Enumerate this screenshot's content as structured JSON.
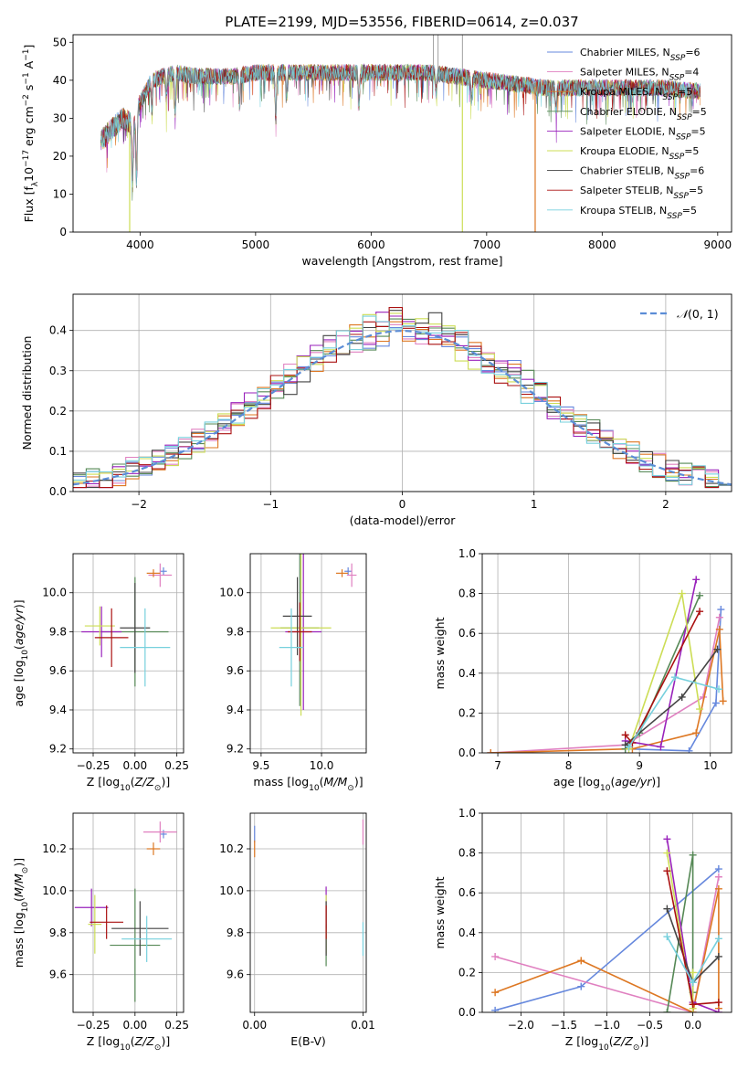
{
  "figure_title": "PLATE=2199, MJD=53556, FIBERID=0614, z=0.037",
  "colors": {
    "Chabrier MILES": "#6688dd",
    "Salpeter MILES": "#e080c0",
    "Kroupa MILES": "#dd7722",
    "Chabrier ELODIE": "#558855",
    "Salpeter ELODIE": "#9922bb",
    "Kroupa ELODIE": "#ccdd55",
    "Chabrier STELIB": "#444444",
    "Salpeter STELIB": "#aa1111",
    "Kroupa STELIB": "#77d0dd"
  },
  "chart_data": [
    {
      "id": "spectrum",
      "type": "line",
      "title": "PLATE=2199, MJD=53556, FIBERID=0614, z=0.037",
      "xlabel": "wavelength [Angstrom, rest frame]",
      "ylabel": "Flux [f_λ 10^-17 erg cm^-2 s^-1 A^-1]",
      "xlim": [
        3420,
        9120
      ],
      "ylim": [
        0,
        52
      ],
      "xticks": [
        4000,
        5000,
        6000,
        7000,
        8000,
        9000
      ],
      "yticks": [
        0,
        10,
        20,
        30,
        40,
        50
      ],
      "grid": false,
      "legend_position": "top-right",
      "legend": [
        {
          "name": "Chabrier MILES",
          "nssp": "6"
        },
        {
          "name": "Salpeter MILES",
          "nssp": "4"
        },
        {
          "name": "Kroupa MILES",
          "nssp": "5"
        },
        {
          "name": "Chabrier ELODIE",
          "nssp": "5"
        },
        {
          "name": "Salpeter ELODIE",
          "nssp": "5"
        },
        {
          "name": "Kroupa ELODIE",
          "nssp": "5"
        },
        {
          "name": "Chabrier STELIB",
          "nssp": "6"
        },
        {
          "name": "Salpeter STELIB",
          "nssp": "5"
        },
        {
          "name": "Kroupa STELIB",
          "nssp": "5"
        }
      ],
      "continuum": [
        [
          3660,
          24
        ],
        [
          3750,
          27
        ],
        [
          3850,
          30
        ],
        [
          3950,
          28
        ],
        [
          4000,
          34
        ],
        [
          4100,
          40
        ],
        [
          4300,
          42
        ],
        [
          4500,
          41
        ],
        [
          4800,
          41
        ],
        [
          5000,
          42
        ],
        [
          5500,
          42
        ],
        [
          6000,
          42
        ],
        [
          6500,
          42
        ],
        [
          7000,
          40
        ],
        [
          7500,
          38
        ],
        [
          8000,
          38
        ],
        [
          8500,
          38
        ],
        [
          8850,
          37
        ]
      ],
      "absorption_lines": [
        [
          3934,
          16
        ],
        [
          3969,
          16
        ],
        [
          4102,
          8
        ],
        [
          4227,
          6
        ],
        [
          4304,
          10
        ],
        [
          4861,
          8
        ],
        [
          5175,
          12
        ],
        [
          5270,
          6
        ],
        [
          5895,
          8
        ],
        [
          6563,
          5
        ],
        [
          6870,
          6
        ],
        [
          7600,
          6
        ]
      ],
      "spikes": [
        6540,
        6580,
        6790
      ],
      "dropouts": [
        {
          "model": "Kroupa ELODIE",
          "wavelength": 3910
        },
        {
          "model": "Kroupa ELODIE",
          "wavelength": 6790
        },
        {
          "model": "Kroupa MILES",
          "wavelength": 7420
        }
      ]
    },
    {
      "id": "residuals",
      "type": "line",
      "xlabel": "(data-model)/error",
      "ylabel": "Normed distribution",
      "xlim": [
        -2.5,
        2.5
      ],
      "ylim": [
        0,
        0.49
      ],
      "xticks": [
        -2,
        -1,
        0,
        1,
        2
      ],
      "yticks": [
        0.0,
        0.1,
        0.2,
        0.3,
        0.4
      ],
      "grid": true,
      "legend_position": "top-right",
      "reference_curve": "N(0,1)",
      "bins": 50
    },
    {
      "id": "age_vs_Z",
      "type": "scatter",
      "xlabel": "Z [log10(Z/Z⊙)]",
      "ylabel": "age [log10(age/yr)]",
      "xlim": [
        -0.37,
        0.29
      ],
      "ylim": [
        9.18,
        10.2
      ],
      "xticks": [
        -0.25,
        0.0,
        0.25
      ],
      "yticks": [
        9.2,
        9.4,
        9.6,
        9.8,
        10.0
      ],
      "grid": true,
      "points": [
        {
          "model": "Chabrier MILES",
          "x": 0.17,
          "y": 10.11,
          "xerr": 0.02,
          "yerr": 0.02
        },
        {
          "model": "Salpeter MILES",
          "x": 0.15,
          "y": 10.09,
          "xerr": 0.07,
          "yerr": 0.06
        },
        {
          "model": "Kroupa MILES",
          "x": 0.11,
          "y": 10.1,
          "xerr": 0.04,
          "yerr": 0.02
        },
        {
          "model": "Chabrier ELODIE",
          "x": 0.0,
          "y": 9.8,
          "xerr": 0.2,
          "yerr": 0.28
        },
        {
          "model": "Salpeter ELODIE",
          "x": -0.2,
          "y": 9.8,
          "xerr": 0.12,
          "yerr": 0.13
        },
        {
          "model": "Kroupa ELODIE",
          "x": -0.21,
          "y": 9.83,
          "xerr": 0.09,
          "yerr": 0.1
        },
        {
          "model": "Chabrier STELIB",
          "x": 0.0,
          "y": 9.82,
          "xerr": 0.09,
          "yerr": 0.23
        },
        {
          "model": "Salpeter STELIB",
          "x": -0.14,
          "y": 9.77,
          "xerr": 0.1,
          "yerr": 0.15
        },
        {
          "model": "Kroupa STELIB",
          "x": 0.06,
          "y": 9.72,
          "xerr": 0.15,
          "yerr": 0.2
        }
      ]
    },
    {
      "id": "age_vs_mass",
      "type": "scatter",
      "xlabel": "mass [log10(M/M⊙)]",
      "ylabel": "",
      "xlim": [
        9.41,
        10.37
      ],
      "ylim": [
        9.18,
        10.2
      ],
      "xticks": [
        9.5,
        10.0
      ],
      "yticks": [
        9.2,
        9.4,
        9.6,
        9.8,
        10.0
      ],
      "grid": true,
      "points": [
        {
          "model": "Chabrier MILES",
          "x": 10.22,
          "y": 10.11,
          "xerr": 0.03,
          "yerr": 0.02
        },
        {
          "model": "Salpeter MILES",
          "x": 10.25,
          "y": 10.09,
          "xerr": 0.04,
          "yerr": 0.06
        },
        {
          "model": "Kroupa MILES",
          "x": 10.17,
          "y": 10.1,
          "xerr": 0.05,
          "yerr": 0.02
        },
        {
          "model": "Chabrier ELODIE",
          "x": 9.82,
          "y": 9.82,
          "xerr": 0.16,
          "yerr": 0.4
        },
        {
          "model": "Salpeter ELODIE",
          "x": 9.85,
          "y": 9.8,
          "xerr": 0.15,
          "yerr": 0.4
        },
        {
          "model": "Kroupa ELODIE",
          "x": 9.83,
          "y": 9.82,
          "xerr": 0.25,
          "yerr": 0.45
        },
        {
          "model": "Chabrier STELIB",
          "x": 9.8,
          "y": 9.88,
          "xerr": 0.12,
          "yerr": 0.2
        },
        {
          "model": "Salpeter STELIB",
          "x": 9.82,
          "y": 9.8,
          "xerr": 0.1,
          "yerr": 0.15
        },
        {
          "model": "Kroupa STELIB",
          "x": 9.75,
          "y": 9.72,
          "xerr": 0.1,
          "yerr": 0.2
        }
      ]
    },
    {
      "id": "mass_weight_vs_age",
      "type": "line",
      "xlabel": "age [log10(age/yr)]",
      "ylabel": "mass weight",
      "xlim": [
        6.78,
        10.3
      ],
      "ylim": [
        0,
        1.0
      ],
      "xticks": [
        7,
        8,
        9,
        10
      ],
      "yticks": [
        0.0,
        0.2,
        0.4,
        0.6,
        0.8,
        1.0
      ],
      "grid": true,
      "series": [
        {
          "model": "Chabrier MILES",
          "x": [
            8.8,
            9.7,
            10.08,
            10.15
          ],
          "y": [
            0.02,
            0.01,
            0.25,
            0.72
          ]
        },
        {
          "model": "Salpeter MILES",
          "x": [
            6.9,
            8.8,
            9.9,
            10.13
          ],
          "y": [
            0.0,
            0.04,
            0.28,
            0.68
          ]
        },
        {
          "model": "Kroupa MILES",
          "x": [
            6.9,
            8.9,
            9.8,
            10.13,
            10.18
          ],
          "y": [
            0.0,
            0.02,
            0.1,
            0.62,
            0.26
          ]
        },
        {
          "model": "Chabrier ELODIE",
          "x": [
            8.8,
            9.0,
            9.85
          ],
          "y": [
            0.02,
            0.1,
            0.79
          ]
        },
        {
          "model": "Salpeter ELODIE",
          "x": [
            8.8,
            9.3,
            9.8
          ],
          "y": [
            0.06,
            0.03,
            0.87
          ]
        },
        {
          "model": "Kroupa ELODIE",
          "x": [
            8.85,
            9.6,
            9.85
          ],
          "y": [
            0.02,
            0.8,
            0.22
          ]
        },
        {
          "model": "Chabrier STELIB",
          "x": [
            8.8,
            9.6,
            10.1
          ],
          "y": [
            0.04,
            0.28,
            0.52
          ]
        },
        {
          "model": "Salpeter STELIB",
          "x": [
            8.8,
            8.9,
            9.85
          ],
          "y": [
            0.09,
            0.05,
            0.71
          ]
        },
        {
          "model": "Kroupa STELIB",
          "x": [
            8.85,
            9.5,
            10.12
          ],
          "y": [
            0.03,
            0.38,
            0.32
          ]
        }
      ]
    },
    {
      "id": "mass_vs_Z",
      "type": "scatter",
      "xlabel": "Z [log10(Z/Z⊙)]",
      "ylabel": "mass [log10(M/M⊙)]",
      "xlim": [
        -0.37,
        0.29
      ],
      "ylim": [
        9.42,
        10.37
      ],
      "xticks": [
        -0.25,
        0.0,
        0.25
      ],
      "yticks": [
        9.6,
        9.8,
        10.0,
        10.2
      ],
      "grid": true,
      "points": [
        {
          "model": "Chabrier MILES",
          "x": 0.17,
          "y": 10.27,
          "xerr": 0.02,
          "yerr": 0.02
        },
        {
          "model": "Salpeter MILES",
          "x": 0.15,
          "y": 10.28,
          "xerr": 0.1,
          "yerr": 0.05
        },
        {
          "model": "Kroupa MILES",
          "x": 0.11,
          "y": 10.2,
          "xerr": 0.04,
          "yerr": 0.03
        },
        {
          "model": "Chabrier ELODIE",
          "x": 0.0,
          "y": 9.74,
          "xerr": 0.15,
          "yerr": 0.27
        },
        {
          "model": "Salpeter ELODIE",
          "x": -0.26,
          "y": 9.92,
          "xerr": 0.1,
          "yerr": 0.09
        },
        {
          "model": "Kroupa ELODIE",
          "x": -0.24,
          "y": 9.84,
          "xerr": 0.04,
          "yerr": 0.14
        },
        {
          "model": "Chabrier STELIB",
          "x": 0.03,
          "y": 9.82,
          "xerr": 0.17,
          "yerr": 0.13
        },
        {
          "model": "Salpeter STELIB",
          "x": -0.17,
          "y": 9.85,
          "xerr": 0.1,
          "yerr": 0.08
        },
        {
          "model": "Kroupa STELIB",
          "x": 0.07,
          "y": 9.77,
          "xerr": 0.15,
          "yerr": 0.11
        }
      ]
    },
    {
      "id": "mass_vs_ebv",
      "type": "scatter",
      "xlabel": "E(B-V)",
      "ylabel": "",
      "xlim": [
        -0.0004,
        0.0103
      ],
      "ylim": [
        9.42,
        10.37
      ],
      "xticks": [
        0.0,
        0.01
      ],
      "yticks": [
        9.6,
        9.8,
        10.0,
        10.2
      ],
      "grid": true,
      "points": [
        {
          "model": "Chabrier MILES",
          "x": 0.0,
          "y": 10.27,
          "xerr": 0.0,
          "yerr": 0.04
        },
        {
          "model": "Salpeter MILES",
          "x": 0.01,
          "y": 10.28,
          "xerr": 0.0,
          "yerr": 0.06
        },
        {
          "model": "Kroupa MILES",
          "x": 0.0,
          "y": 10.2,
          "xerr": 0.0,
          "yerr": 0.04
        },
        {
          "model": "Chabrier ELODIE",
          "x": 0.0066,
          "y": 9.74,
          "xerr": 0.0,
          "yerr": 0.1
        },
        {
          "model": "Salpeter ELODIE",
          "x": 0.0066,
          "y": 9.92,
          "xerr": 0.0,
          "yerr": 0.1
        },
        {
          "model": "Kroupa ELODIE",
          "x": 0.0066,
          "y": 9.84,
          "xerr": 0.0,
          "yerr": 0.14
        },
        {
          "model": "Chabrier STELIB",
          "x": 0.0066,
          "y": 9.82,
          "xerr": 0.0,
          "yerr": 0.13
        },
        {
          "model": "Salpeter STELIB",
          "x": 0.0066,
          "y": 9.85,
          "xerr": 0.0,
          "yerr": 0.08
        },
        {
          "model": "Kroupa STELIB",
          "x": 0.01,
          "y": 9.77,
          "xerr": 0.0,
          "yerr": 0.08
        }
      ]
    },
    {
      "id": "mass_weight_vs_Z",
      "type": "line",
      "xlabel": "Z [log10(Z/Z⊙)]",
      "ylabel": "mass weight",
      "xlim": [
        -2.45,
        0.45
      ],
      "ylim": [
        0,
        1.0
      ],
      "xticks": [
        -2.0,
        -1.5,
        -1.0,
        -0.5,
        0.0
      ],
      "yticks": [
        0.0,
        0.2,
        0.4,
        0.6,
        0.8,
        1.0
      ],
      "grid": true,
      "series": [
        {
          "model": "Chabrier MILES",
          "x": [
            -2.3,
            -1.3,
            0.3
          ],
          "y": [
            0.01,
            0.13,
            0.72
          ]
        },
        {
          "model": "Salpeter MILES",
          "x": [
            -2.3,
            0.0,
            0.3
          ],
          "y": [
            0.28,
            0.0,
            0.68
          ]
        },
        {
          "model": "Kroupa MILES",
          "x": [
            -2.3,
            -1.3,
            0.0,
            0.3,
            0.3
          ],
          "y": [
            0.1,
            0.26,
            0.0,
            0.62,
            0.02
          ]
        },
        {
          "model": "Chabrier ELODIE",
          "x": [
            -0.3,
            0.0,
            0.0
          ],
          "y": [
            0.0,
            0.79,
            0.1
          ]
        },
        {
          "model": "Salpeter ELODIE",
          "x": [
            -0.3,
            0.0,
            0.3
          ],
          "y": [
            0.87,
            0.05,
            0.0
          ]
        },
        {
          "model": "Kroupa ELODIE",
          "x": [
            -0.3,
            0.0,
            0.0
          ],
          "y": [
            0.8,
            0.02,
            0.2
          ]
        },
        {
          "model": "Chabrier STELIB",
          "x": [
            -0.3,
            0.0,
            0.3
          ],
          "y": [
            0.52,
            0.15,
            0.28
          ]
        },
        {
          "model": "Salpeter STELIB",
          "x": [
            -0.3,
            0.0,
            0.3
          ],
          "y": [
            0.71,
            0.04,
            0.05
          ]
        },
        {
          "model": "Kroupa STELIB",
          "x": [
            -0.3,
            0.0,
            0.3
          ],
          "y": [
            0.38,
            0.15,
            0.37
          ]
        }
      ]
    }
  ]
}
